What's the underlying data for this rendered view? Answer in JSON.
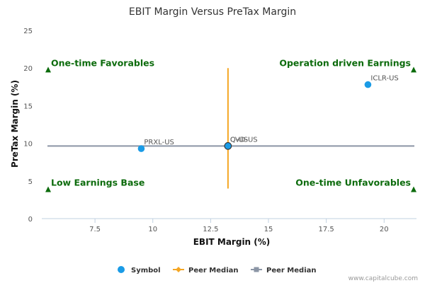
{
  "chart_data": {
    "type": "scatter",
    "title": "EBIT Margin Versus PreTax Margin",
    "xlabel": "EBIT Margin (%)",
    "ylabel": "PreTax Margin (%)",
    "xlim": [
      5.2,
      21.4
    ],
    "ylim": [
      0,
      25
    ],
    "xticks": [
      {
        "value": 7.5,
        "label": "7.5"
      },
      {
        "value": 10,
        "label": "10"
      },
      {
        "value": 12.5,
        "label": "12.5"
      },
      {
        "value": 15,
        "label": "15"
      },
      {
        "value": 17.5,
        "label": "17.5"
      },
      {
        "value": 20,
        "label": "20"
      }
    ],
    "yticks": [
      {
        "value": 0,
        "label": "0"
      },
      {
        "value": 5,
        "label": "5"
      },
      {
        "value": 10,
        "label": "10"
      },
      {
        "value": 15,
        "label": "15"
      },
      {
        "value": 20,
        "label": "20"
      },
      {
        "value": 25,
        "label": "25"
      }
    ],
    "points": [
      {
        "label": "PRXL-US",
        "x": 9.5,
        "y": 9.3
      },
      {
        "label": "ICLR-US",
        "x": 19.3,
        "y": 17.8
      },
      {
        "label": "Q-US",
        "x": 13.25,
        "y": 9.65
      },
      {
        "label": "CVD-US",
        "x": 13.25,
        "y": 9.65
      }
    ],
    "peer_median_x": {
      "value": 13.25,
      "y_from": 4.0,
      "y_to": 20.0
    },
    "peer_median_y": {
      "value": 9.65,
      "x_from": 5.2,
      "x_to": 21.4
    },
    "quadrants": [
      {
        "label": "One-time Favorables",
        "x": 5.2,
        "y": 19.8,
        "side": "left"
      },
      {
        "label": "Operation driven Earnings",
        "x": 21.4,
        "y": 19.8,
        "side": "right"
      },
      {
        "label": "Low Earnings Base",
        "x": 5.2,
        "y": 3.9,
        "side": "left"
      },
      {
        "label": "One-time Unfavorables",
        "x": 21.4,
        "y": 3.9,
        "side": "right"
      }
    ],
    "legend": [
      {
        "label": "Symbol",
        "marker": "circle",
        "color": "#1a9be6"
      },
      {
        "label": "Peer Median",
        "marker": "diamond-line",
        "color": "#f5a623"
      },
      {
        "label": "Peer Median",
        "marker": "square-line",
        "color": "#8b95a5"
      }
    ],
    "legend_position": "bottom",
    "grid": false,
    "colors": {
      "point": "#1a9be6",
      "median_x": "#f5a623",
      "median_y": "#8b95a5",
      "quadrant": "#0c6b0c"
    },
    "credit": "www.capitalcube.com"
  }
}
